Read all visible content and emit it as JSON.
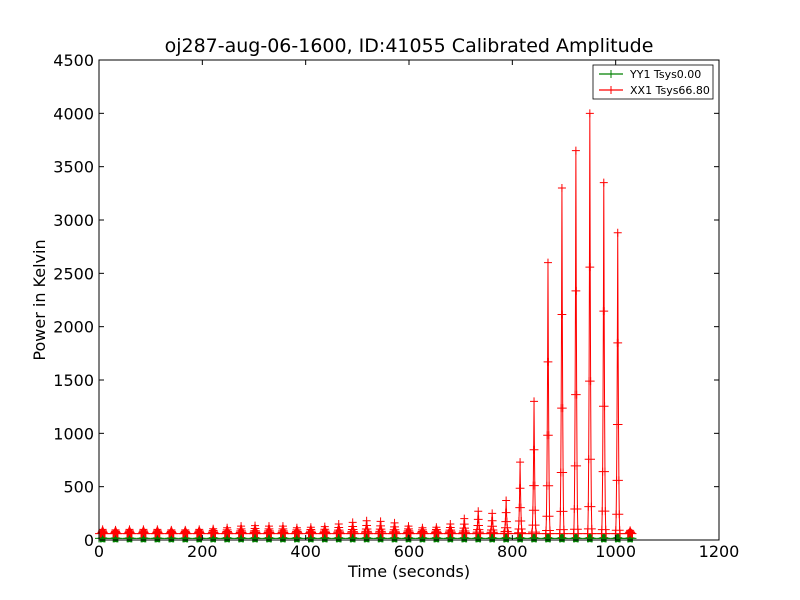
{
  "chart_data": {
    "type": "line",
    "title": "oj287-aug-06-1600, ID:41055 Calibrated Amplitude",
    "xlabel": "Time (seconds)",
    "ylabel": "Power in Kelvin",
    "xlim": [
      0,
      1200
    ],
    "ylim": [
      0,
      4500
    ],
    "xticks": [
      0,
      200,
      400,
      600,
      800,
      1000,
      1200
    ],
    "yticks": [
      0,
      500,
      1000,
      1500,
      2000,
      2500,
      3000,
      3500,
      4000,
      4500
    ],
    "grid": false,
    "legend_position": "top-right",
    "scan_period": 26.8,
    "scan_start": 0,
    "scan_end": 1030,
    "series": [
      {
        "name": "YY1 Tsys0.00",
        "color": "#008000",
        "baseline": 15,
        "peaks": [
          [
            7,
            20
          ],
          [
            32,
            20
          ],
          [
            59,
            20
          ],
          [
            86,
            20
          ],
          [
            113,
            20
          ],
          [
            140,
            20
          ],
          [
            167,
            20
          ],
          [
            194,
            20
          ],
          [
            221,
            22
          ],
          [
            248,
            22
          ],
          [
            275,
            22
          ],
          [
            302,
            22
          ],
          [
            329,
            22
          ],
          [
            356,
            22
          ],
          [
            383,
            22
          ],
          [
            410,
            22
          ],
          [
            437,
            22
          ],
          [
            464,
            22
          ],
          [
            491,
            22
          ],
          [
            518,
            22
          ],
          [
            545,
            22
          ],
          [
            572,
            22
          ],
          [
            599,
            22
          ],
          [
            626,
            22
          ],
          [
            653,
            22
          ],
          [
            680,
            22
          ],
          [
            707,
            22
          ],
          [
            734,
            22
          ],
          [
            761,
            22
          ],
          [
            788,
            22
          ],
          [
            815,
            22
          ],
          [
            842,
            22
          ],
          [
            869,
            22
          ],
          [
            896,
            22
          ],
          [
            923,
            22
          ],
          [
            950,
            22
          ],
          [
            977,
            22
          ],
          [
            1004,
            22
          ],
          [
            1028,
            20
          ]
        ]
      },
      {
        "name": "XX1 Tsys66.80",
        "color": "#ff0000",
        "baseline": 60,
        "peaks": [
          [
            7,
            100
          ],
          [
            32,
            95
          ],
          [
            59,
            100
          ],
          [
            86,
            100
          ],
          [
            113,
            100
          ],
          [
            140,
            95
          ],
          [
            167,
            95
          ],
          [
            194,
            100
          ],
          [
            221,
            105
          ],
          [
            248,
            115
          ],
          [
            275,
            130
          ],
          [
            302,
            135
          ],
          [
            329,
            130
          ],
          [
            356,
            130
          ],
          [
            383,
            115
          ],
          [
            410,
            120
          ],
          [
            437,
            125
          ],
          [
            464,
            150
          ],
          [
            491,
            165
          ],
          [
            518,
            180
          ],
          [
            545,
            175
          ],
          [
            572,
            160
          ],
          [
            599,
            130
          ],
          [
            626,
            115
          ],
          [
            653,
            120
          ],
          [
            680,
            150
          ],
          [
            707,
            200
          ],
          [
            734,
            270
          ],
          [
            761,
            250
          ],
          [
            788,
            370
          ],
          [
            815,
            730
          ],
          [
            842,
            1300
          ],
          [
            869,
            2600
          ],
          [
            896,
            3300
          ],
          [
            923,
            3650
          ],
          [
            950,
            4000
          ],
          [
            977,
            3350
          ],
          [
            1004,
            2880
          ],
          [
            1028,
            90
          ]
        ]
      }
    ]
  }
}
